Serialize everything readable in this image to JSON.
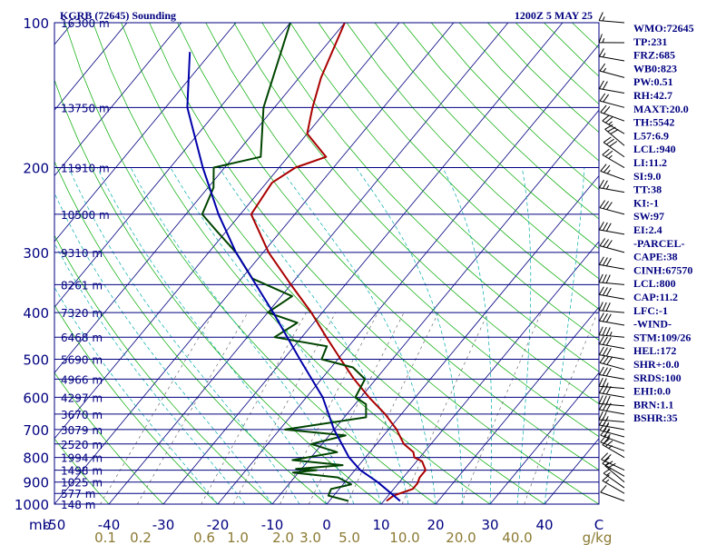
{
  "title_left": "KGRB (72645) Sounding",
  "title_right": "1200Z  5 MAY 25",
  "chart_data": {
    "type": "line",
    "chart_kind": "skew-T log-P sounding",
    "y_scale": "log",
    "ylim": [
      1000,
      100
    ],
    "xlim": [
      -50,
      50
    ],
    "y_unit": "mb",
    "x_unit": "C",
    "pressure_ticks": [
      {
        "p": 100,
        "label": "100"
      },
      {
        "p": 200,
        "label": "200"
      },
      {
        "p": 300,
        "label": "300"
      },
      {
        "p": 400,
        "label": "400"
      },
      {
        "p": 500,
        "label": "500"
      },
      {
        "p": 600,
        "label": "600"
      },
      {
        "p": 700,
        "label": "700"
      },
      {
        "p": 800,
        "label": "800"
      },
      {
        "p": 900,
        "label": "900"
      },
      {
        "p": 1000,
        "label": "1000"
      }
    ],
    "height_labels": [
      {
        "p": 100,
        "label": "16300 m"
      },
      {
        "p": 150,
        "label": "13750 m"
      },
      {
        "p": 200,
        "label": "11910 m"
      },
      {
        "p": 250,
        "label": "10500 m"
      },
      {
        "p": 300,
        "label": "9310 m"
      },
      {
        "p": 350,
        "label": "8261 m"
      },
      {
        "p": 400,
        "label": "7320 m"
      },
      {
        "p": 450,
        "label": "6468 m"
      },
      {
        "p": 500,
        "label": "5690 m"
      },
      {
        "p": 550,
        "label": "4966 m"
      },
      {
        "p": 600,
        "label": "4297 m"
      },
      {
        "p": 650,
        "label": "3670 m"
      },
      {
        "p": 700,
        "label": "3079 m"
      },
      {
        "p": 750,
        "label": "2520 m"
      },
      {
        "p": 800,
        "label": "1994 m"
      },
      {
        "p": 850,
        "label": "1498 m"
      },
      {
        "p": 900,
        "label": "1025 m"
      },
      {
        "p": 950,
        "label": "577 m"
      },
      {
        "p": 1000,
        "label": "148 m"
      }
    ],
    "temperature_ticks": [
      "-50",
      "-40",
      "-30",
      "-20",
      "-10",
      "0",
      "10",
      "20",
      "30",
      "40",
      "C"
    ],
    "mixing_ratio_ticks": [
      "0.1",
      "0.2",
      "0.6",
      "1.0",
      "2.0",
      "3.0",
      "5.0",
      "10.0",
      "20.0",
      "40.0",
      "g/kg"
    ],
    "series": [
      {
        "key": "temperature",
        "color": "#aa0000",
        "points": [
          {
            "p": 985,
            "t": 10.5
          },
          {
            "p": 960,
            "t": 11.0
          },
          {
            "p": 930,
            "t": 13.5
          },
          {
            "p": 905,
            "t": 13.5
          },
          {
            "p": 880,
            "t": 13.0
          },
          {
            "p": 850,
            "t": 13.0
          },
          {
            "p": 815,
            "t": 11.0
          },
          {
            "p": 800,
            "t": 9.0
          },
          {
            "p": 780,
            "t": 8.0
          },
          {
            "p": 750,
            "t": 5.0
          },
          {
            "p": 700,
            "t": 1.5
          },
          {
            "p": 650,
            "t": -3.0
          },
          {
            "p": 600,
            "t": -8.5
          },
          {
            "p": 550,
            "t": -14.0
          },
          {
            "p": 500,
            "t": -19.5
          },
          {
            "p": 450,
            "t": -25.5
          },
          {
            "p": 400,
            "t": -32.0
          },
          {
            "p": 350,
            "t": -40.0
          },
          {
            "p": 300,
            "t": -49.0
          },
          {
            "p": 250,
            "t": -58.0
          },
          {
            "p": 215,
            "t": -59.0
          },
          {
            "p": 200,
            "t": -57.0
          },
          {
            "p": 190,
            "t": -53.0
          },
          {
            "p": 170,
            "t": -60.0
          },
          {
            "p": 150,
            "t": -63.0
          },
          {
            "p": 130,
            "t": -66.0
          },
          {
            "p": 100,
            "t": -70.0
          }
        ]
      },
      {
        "key": "dewpoint",
        "color": "#004400",
        "points": [
          {
            "p": 985,
            "t": 3.5
          },
          {
            "p": 960,
            "t": -1.0
          },
          {
            "p": 930,
            "t": -1.5
          },
          {
            "p": 910,
            "t": 1.5
          },
          {
            "p": 880,
            "t": -2.0
          },
          {
            "p": 860,
            "t": -11.0
          },
          {
            "p": 850,
            "t": -7.0
          },
          {
            "p": 845,
            "t": -11.0
          },
          {
            "p": 830,
            "t": -3.0
          },
          {
            "p": 810,
            "t": -13.0
          },
          {
            "p": 780,
            "t": -6.0
          },
          {
            "p": 750,
            "t": -12.0
          },
          {
            "p": 720,
            "t": -7.0
          },
          {
            "p": 700,
            "t": -19.0
          },
          {
            "p": 660,
            "t": -6.0
          },
          {
            "p": 620,
            "t": -8.0
          },
          {
            "p": 600,
            "t": -11.0
          },
          {
            "p": 550,
            "t": -12.0
          },
          {
            "p": 520,
            "t": -16.0
          },
          {
            "p": 500,
            "t": -23.0
          },
          {
            "p": 470,
            "t": -24.0
          },
          {
            "p": 450,
            "t": -35.0
          },
          {
            "p": 420,
            "t": -33.0
          },
          {
            "p": 400,
            "t": -40.0
          },
          {
            "p": 370,
            "t": -38.0
          },
          {
            "p": 340,
            "t": -48.0
          },
          {
            "p": 300,
            "t": -55.0
          },
          {
            "p": 270,
            "t": -62.0
          },
          {
            "p": 250,
            "t": -67.0
          },
          {
            "p": 220,
            "t": -69.0
          },
          {
            "p": 200,
            "t": -72.0
          },
          {
            "p": 190,
            "t": -65.0
          },
          {
            "p": 150,
            "t": -72.0
          },
          {
            "p": 100,
            "t": -80.0
          }
        ]
      },
      {
        "key": "parcel",
        "color": "#0000aa",
        "points": [
          {
            "p": 985,
            "t": 13.0
          },
          {
            "p": 900,
            "t": 6.0
          },
          {
            "p": 850,
            "t": 1.0
          },
          {
            "p": 800,
            "t": -3.0
          },
          {
            "p": 700,
            "t": -10.0
          },
          {
            "p": 600,
            "t": -17.0
          },
          {
            "p": 500,
            "t": -27.0
          },
          {
            "p": 400,
            "t": -39.0
          },
          {
            "p": 300,
            "t": -55.0
          },
          {
            "p": 250,
            "t": -64.0
          },
          {
            "p": 200,
            "t": -74.0
          },
          {
            "p": 150,
            "t": -86.0
          },
          {
            "p": 115,
            "t": -94.0
          }
        ]
      }
    ],
    "winds": [
      {
        "p": 985,
        "dir": 290,
        "kt": 10
      },
      {
        "p": 950,
        "dir": 300,
        "kt": 15
      },
      {
        "p": 925,
        "dir": 305,
        "kt": 15
      },
      {
        "p": 900,
        "dir": 310,
        "kt": 20
      },
      {
        "p": 875,
        "dir": 300,
        "kt": 15
      },
      {
        "p": 850,
        "dir": 295,
        "kt": 20
      },
      {
        "p": 800,
        "dir": 300,
        "kt": 25
      },
      {
        "p": 775,
        "dir": 290,
        "kt": 20
      },
      {
        "p": 750,
        "dir": 290,
        "kt": 25
      },
      {
        "p": 725,
        "dir": 285,
        "kt": 25
      },
      {
        "p": 700,
        "dir": 280,
        "kt": 25
      },
      {
        "p": 675,
        "dir": 275,
        "kt": 25
      },
      {
        "p": 650,
        "dir": 280,
        "kt": 30
      },
      {
        "p": 625,
        "dir": 275,
        "kt": 30
      },
      {
        "p": 600,
        "dir": 280,
        "kt": 30
      },
      {
        "p": 575,
        "dir": 275,
        "kt": 25
      },
      {
        "p": 550,
        "dir": 280,
        "kt": 30
      },
      {
        "p": 525,
        "dir": 285,
        "kt": 30
      },
      {
        "p": 500,
        "dir": 280,
        "kt": 30
      },
      {
        "p": 475,
        "dir": 280,
        "kt": 30
      },
      {
        "p": 450,
        "dir": 275,
        "kt": 35
      },
      {
        "p": 425,
        "dir": 280,
        "kt": 30
      },
      {
        "p": 400,
        "dir": 275,
        "kt": 30
      },
      {
        "p": 375,
        "dir": 280,
        "kt": 30
      },
      {
        "p": 350,
        "dir": 275,
        "kt": 30
      },
      {
        "p": 325,
        "dir": 280,
        "kt": 30
      },
      {
        "p": 300,
        "dir": 285,
        "kt": 30
      },
      {
        "p": 275,
        "dir": 280,
        "kt": 30
      },
      {
        "p": 250,
        "dir": 285,
        "kt": 30
      },
      {
        "p": 225,
        "dir": 280,
        "kt": 25
      },
      {
        "p": 212,
        "dir": 290,
        "kt": 25
      },
      {
        "p": 200,
        "dir": 300,
        "kt": 25
      },
      {
        "p": 190,
        "dir": 305,
        "kt": 30
      },
      {
        "p": 180,
        "dir": 310,
        "kt": 30
      },
      {
        "p": 170,
        "dir": 300,
        "kt": 25
      },
      {
        "p": 160,
        "dir": 290,
        "kt": 20
      },
      {
        "p": 150,
        "dir": 285,
        "kt": 20
      },
      {
        "p": 140,
        "dir": 280,
        "kt": 20
      },
      {
        "p": 130,
        "dir": 285,
        "kt": 15
      },
      {
        "p": 120,
        "dir": 280,
        "kt": 15
      },
      {
        "p": 110,
        "dir": 270,
        "kt": 15
      },
      {
        "p": 100,
        "dir": 275,
        "kt": 15
      }
    ]
  },
  "indices": [
    "WMO:72645",
    "TP:231",
    "FRZ:685",
    "WB0:823",
    "PW:0.51",
    "RH:42.7",
    "MAXT:20.0",
    "TH:5542",
    "L57:6.9",
    "LCL:940",
    "LI:11.2",
    "SI:9.0",
    "TT:38",
    "KI:-1",
    "SW:97",
    "EI:2.4",
    "-PARCEL-",
    "CAPE:38",
    "CINH:67570",
    "LCL:800",
    "CAP:11.2",
    "LFC:-1",
    "-WIND-",
    "STM:109/26",
    "HEL:172",
    "SHR+:0.0",
    "SRDS:100",
    "EHI:0.0",
    "BRN:1.1",
    "BSHR:35"
  ],
  "colors": {
    "isobar": "#000080",
    "isotherm": "#000080",
    "dry_adiabat": "#00aa00",
    "moist_adiabat": "#00aaaa",
    "mixing_ratio": "#555555",
    "index_text": "#000080",
    "mixing_label": "#8b7a33"
  }
}
